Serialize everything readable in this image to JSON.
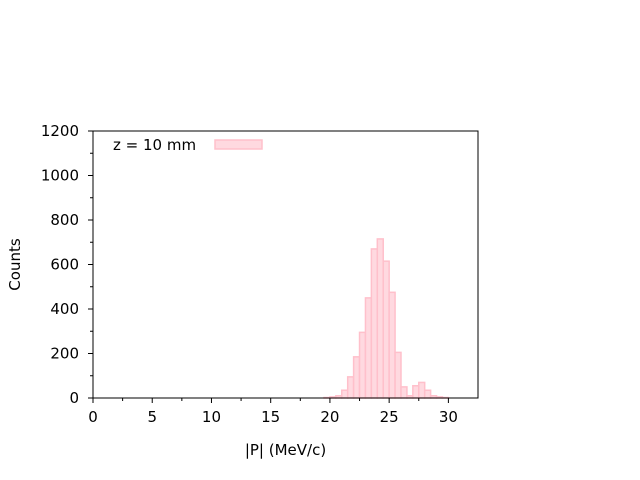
{
  "chart_data": {
    "type": "bar",
    "title": "",
    "xlabel": "|P| (MeV/c)",
    "ylabel": "Counts",
    "xlim": [
      0,
      32.5
    ],
    "ylim": [
      0,
      1200
    ],
    "x_ticks": [
      "0",
      "5",
      "10",
      "15",
      "20",
      "25",
      "30"
    ],
    "y_ticks": [
      "0",
      "200",
      "400",
      "600",
      "800",
      "1000",
      "1200"
    ],
    "bin_width": 0.5,
    "bin_starts": [
      19.5,
      20.0,
      20.5,
      21.0,
      21.5,
      22.0,
      22.5,
      23.0,
      23.5,
      24.0,
      24.5,
      25.0,
      25.5,
      26.0,
      26.5,
      27.0,
      27.5,
      28.0,
      28.5,
      29.0,
      29.5
    ],
    "values": [
      2,
      5,
      10,
      35,
      95,
      185,
      295,
      450,
      670,
      715,
      615,
      475,
      205,
      50,
      10,
      55,
      70,
      35,
      10,
      5,
      2
    ],
    "grid": false,
    "legend_position": "top-left",
    "series": [
      {
        "name": "z = 10 mm",
        "color": "#ffc0cb",
        "fill": "#ffd9e0"
      }
    ]
  }
}
